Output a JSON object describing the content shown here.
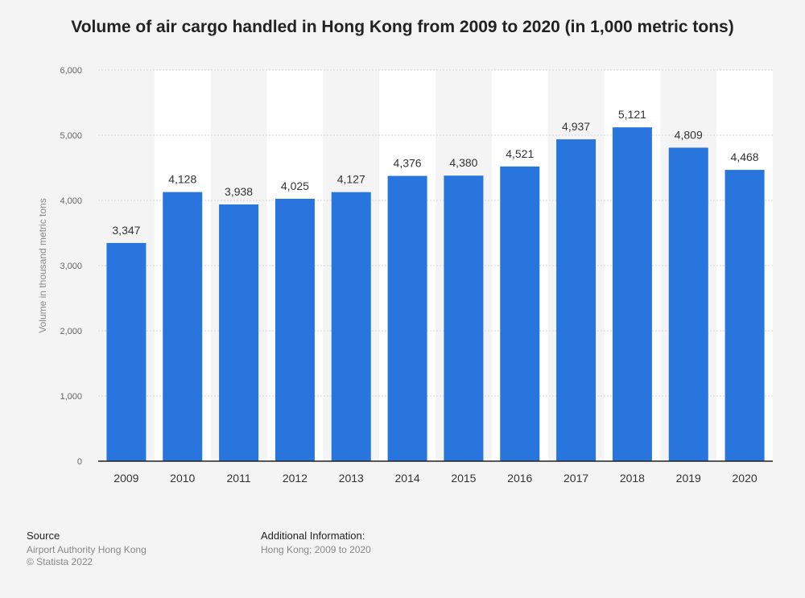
{
  "title": "Volume of air cargo handled in Hong Kong from 2009 to 2020 (in 1,000 metric tons)",
  "colors": {
    "bar": "#2875de",
    "grid": "#d3d3d3",
    "band": "#ffffff",
    "background": "#f4f4f4",
    "axis": "#222222"
  },
  "chart_data": {
    "type": "bar",
    "title": "Volume of air cargo handled in Hong Kong from 2009 to 2020 (in 1,000 metric tons)",
    "xlabel": "",
    "ylabel": "Volume in thousand metric tons",
    "categories": [
      "2009",
      "2010",
      "2011",
      "2012",
      "2013",
      "2014",
      "2015",
      "2016",
      "2017",
      "2018",
      "2019",
      "2020"
    ],
    "values": [
      3347,
      4128,
      3938,
      4025,
      4127,
      4376,
      4380,
      4521,
      4937,
      5121,
      4809,
      4468
    ],
    "data_labels": [
      "3,347",
      "4,128",
      "3,938",
      "4,025",
      "4,127",
      "4,376",
      "4,380",
      "4,521",
      "4,937",
      "5,121",
      "4,809",
      "4,468"
    ],
    "ylim": [
      0,
      6000
    ],
    "yticks": [
      0,
      1000,
      2000,
      3000,
      4000,
      5000,
      6000
    ],
    "ytick_labels": [
      "0",
      "1,000",
      "2,000",
      "3,000",
      "4,000",
      "5,000",
      "6,000"
    ],
    "grid": true,
    "legend": "none"
  },
  "footer": {
    "source_heading": "Source",
    "source_lines": [
      "Airport Authority Hong Kong",
      "© Statista 2022"
    ],
    "info_heading": "Additional Information:",
    "info_text": "Hong Kong; 2009 to 2020"
  }
}
